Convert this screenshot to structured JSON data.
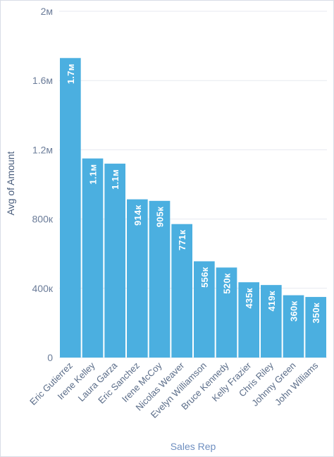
{
  "chart_data": {
    "type": "bar",
    "title": "",
    "xlabel": "Sales Rep",
    "ylabel": "Avg of Amount",
    "ylim": [
      0,
      2000000
    ],
    "yticks": [
      {
        "value": 0,
        "label": "0"
      },
      {
        "value": 400000,
        "label": "400к"
      },
      {
        "value": 800000,
        "label": "800к"
      },
      {
        "value": 1200000,
        "label": "1.2м"
      },
      {
        "value": 1600000,
        "label": "1.6м"
      },
      {
        "value": 2000000,
        "label": "2м"
      }
    ],
    "categories": [
      "Eric Gutierrez",
      "Irene Kelley",
      "Laura Garza",
      "Eric Sanchez",
      "Irene McCoy",
      "Nicolas Weaver",
      "Evelyn Williamson",
      "Bruce Kennedy",
      "Kelly Frazier",
      "Chris Riley",
      "Johnny Green",
      "John Williams"
    ],
    "values": [
      1730000,
      1150000,
      1120000,
      914000,
      905000,
      771000,
      556000,
      520000,
      435000,
      419000,
      360000,
      350000
    ],
    "data_labels": [
      "1.7м",
      "1.1м",
      "1.1м",
      "914к",
      "905к",
      "771к",
      "556к",
      "520к",
      "435к",
      "419к",
      "360к",
      "350к"
    ],
    "grid": true,
    "legend": "none",
    "bar_color": "#4bafe0"
  }
}
